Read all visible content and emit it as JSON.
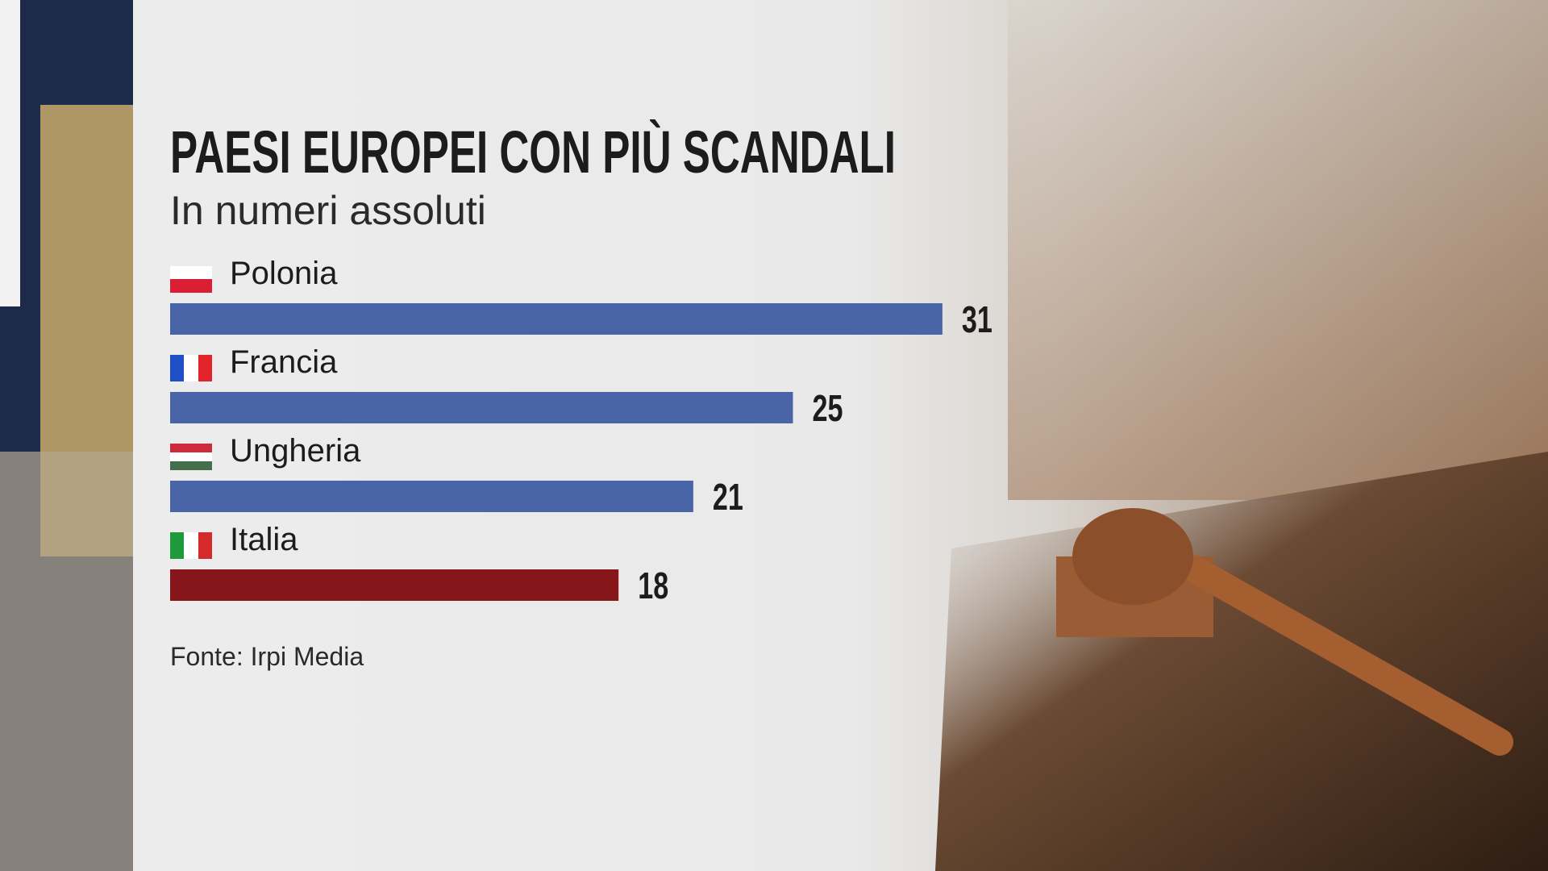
{
  "chart_data": {
    "type": "hbar",
    "title": "PAESI EUROPEI CON PIÙ SCANDALI",
    "subtitle": "In numeri assoluti",
    "categories": [
      "Polonia",
      "Francia",
      "Ungheria",
      "Italia"
    ],
    "values": [
      31,
      25,
      21,
      18
    ],
    "colors": [
      "#4a65a7",
      "#4a65a7",
      "#4a65a7",
      "#86161a"
    ],
    "source": "Fonte: Irpi Media"
  }
}
